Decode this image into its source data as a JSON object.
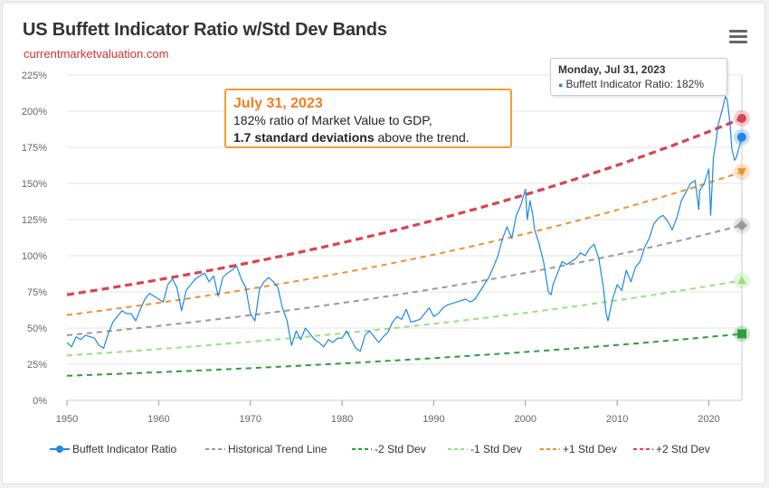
{
  "header": {
    "title": "US Buffett Indicator Ratio w/Std Dev Bands",
    "subtitle": "currentmarketvaluation.com",
    "menu_icon": "hamburger-menu-icon"
  },
  "callout": {
    "date": "July 31, 2023",
    "line1": "182% ratio of Market Value to GDP,",
    "line2_bold": "1.7 standard deviations",
    "line2_rest": " above the trend."
  },
  "tooltip": {
    "date": "Monday, Jul 31, 2023",
    "series": "Buffett Indicator Ratio",
    "value": "182%"
  },
  "colors": {
    "ratio": "#1e88e5",
    "trend": "#999999",
    "minus2": "#2e9d3e",
    "minus1": "#99e07a",
    "plus1": "#f0902a",
    "plus2": "#d9434e",
    "accent": "#f08020"
  },
  "chart_data": {
    "type": "line",
    "title": "US Buffett Indicator Ratio w/Std Dev Bands",
    "xlabel": "",
    "ylabel": "",
    "xlim": [
      1950,
      2023.6
    ],
    "ylim": [
      0,
      225
    ],
    "x_ticks": [
      "1950",
      "1960",
      "1970",
      "1980",
      "1990",
      "2000",
      "2010",
      "2020"
    ],
    "y_ticks": [
      "0%",
      "25%",
      "50%",
      "75%",
      "100%",
      "125%",
      "150%",
      "175%",
      "200%",
      "225%"
    ],
    "grid": "horizontal",
    "legend_position": "bottom",
    "series": [
      {
        "name": "Buffett Indicator Ratio",
        "style": "solid",
        "points": [
          [
            1950,
            40
          ],
          [
            1950.5,
            37
          ],
          [
            1951,
            44
          ],
          [
            1951.5,
            42
          ],
          [
            1952,
            45
          ],
          [
            1952.5,
            44
          ],
          [
            1953,
            43
          ],
          [
            1953.5,
            38
          ],
          [
            1954,
            36
          ],
          [
            1954.5,
            46
          ],
          [
            1955,
            54
          ],
          [
            1955.5,
            58
          ],
          [
            1956,
            62
          ],
          [
            1956.5,
            60
          ],
          [
            1957,
            60
          ],
          [
            1957.5,
            55
          ],
          [
            1958,
            63
          ],
          [
            1958.5,
            70
          ],
          [
            1959,
            74
          ],
          [
            1959.5,
            72
          ],
          [
            1960,
            70
          ],
          [
            1960.5,
            68
          ],
          [
            1961,
            80
          ],
          [
            1961.5,
            84
          ],
          [
            1962,
            78
          ],
          [
            1962.5,
            62
          ],
          [
            1963,
            76
          ],
          [
            1963.5,
            80
          ],
          [
            1964,
            84
          ],
          [
            1964.5,
            86
          ],
          [
            1965,
            88
          ],
          [
            1965.5,
            82
          ],
          [
            1966,
            86
          ],
          [
            1966.5,
            72
          ],
          [
            1967,
            85
          ],
          [
            1967.5,
            88
          ],
          [
            1968,
            90
          ],
          [
            1968.5,
            93
          ],
          [
            1969,
            84
          ],
          [
            1969.5,
            78
          ],
          [
            1970,
            60
          ],
          [
            1970.5,
            55
          ],
          [
            1971,
            77
          ],
          [
            1971.5,
            82
          ],
          [
            1972,
            85
          ],
          [
            1972.5,
            82
          ],
          [
            1973,
            78
          ],
          [
            1973.5,
            64
          ],
          [
            1974,
            55
          ],
          [
            1974.5,
            38
          ],
          [
            1975,
            48
          ],
          [
            1975.5,
            42
          ],
          [
            1976,
            50
          ],
          [
            1976.5,
            46
          ],
          [
            1977,
            42
          ],
          [
            1977.5,
            40
          ],
          [
            1978,
            37
          ],
          [
            1978.5,
            42
          ],
          [
            1979,
            40
          ],
          [
            1979.5,
            43
          ],
          [
            1980,
            43
          ],
          [
            1980.5,
            48
          ],
          [
            1981,
            42
          ],
          [
            1981.5,
            36
          ],
          [
            1982,
            34
          ],
          [
            1982.5,
            45
          ],
          [
            1983,
            48
          ],
          [
            1983.5,
            44
          ],
          [
            1984,
            40
          ],
          [
            1984.5,
            44
          ],
          [
            1985,
            47
          ],
          [
            1985.5,
            54
          ],
          [
            1986,
            58
          ],
          [
            1986.5,
            56
          ],
          [
            1987,
            63
          ],
          [
            1987.5,
            54
          ],
          [
            1988,
            55
          ],
          [
            1988.5,
            56
          ],
          [
            1989,
            60
          ],
          [
            1989.5,
            64
          ],
          [
            1990,
            58
          ],
          [
            1990.5,
            60
          ],
          [
            1991,
            64
          ],
          [
            1991.5,
            66
          ],
          [
            1992,
            67
          ],
          [
            1992.5,
            68
          ],
          [
            1993,
            69
          ],
          [
            1993.5,
            70
          ],
          [
            1994,
            68
          ],
          [
            1994.5,
            70
          ],
          [
            1995,
            75
          ],
          [
            1995.5,
            80
          ],
          [
            1996,
            85
          ],
          [
            1996.5,
            92
          ],
          [
            1997,
            100
          ],
          [
            1997.5,
            112
          ],
          [
            1998,
            120
          ],
          [
            1998.5,
            112
          ],
          [
            1999,
            128
          ],
          [
            1999.5,
            135
          ],
          [
            2000,
            146
          ],
          [
            2000.2,
            125
          ],
          [
            2000.5,
            138
          ],
          [
            2000.8,
            128
          ],
          [
            2001,
            118
          ],
          [
            2001.5,
            108
          ],
          [
            2002,
            95
          ],
          [
            2002.5,
            75
          ],
          [
            2002.8,
            73
          ],
          [
            2003,
            80
          ],
          [
            2003.5,
            88
          ],
          [
            2004,
            96
          ],
          [
            2004.5,
            94
          ],
          [
            2005,
            96
          ],
          [
            2005.5,
            98
          ],
          [
            2006,
            102
          ],
          [
            2006.5,
            100
          ],
          [
            2007,
            105
          ],
          [
            2007.5,
            108
          ],
          [
            2008,
            98
          ],
          [
            2008.5,
            78
          ],
          [
            2008.8,
            60
          ],
          [
            2009,
            55
          ],
          [
            2009.5,
            70
          ],
          [
            2010,
            80
          ],
          [
            2010.5,
            76
          ],
          [
            2011,
            90
          ],
          [
            2011.5,
            82
          ],
          [
            2012,
            92
          ],
          [
            2012.5,
            96
          ],
          [
            2013,
            106
          ],
          [
            2013.5,
            112
          ],
          [
            2014,
            122
          ],
          [
            2014.5,
            126
          ],
          [
            2015,
            128
          ],
          [
            2015.5,
            124
          ],
          [
            2016,
            118
          ],
          [
            2016.5,
            126
          ],
          [
            2017,
            138
          ],
          [
            2017.5,
            144
          ],
          [
            2018,
            150
          ],
          [
            2018.5,
            152
          ],
          [
            2018.9,
            132
          ],
          [
            2019,
            145
          ],
          [
            2019.5,
            150
          ],
          [
            2020,
            160
          ],
          [
            2020.2,
            128
          ],
          [
            2020.5,
            168
          ],
          [
            2020.8,
            180
          ],
          [
            2021,
            190
          ],
          [
            2021.5,
            202
          ],
          [
            2021.8,
            210
          ],
          [
            2022,
            208
          ],
          [
            2022.3,
            192
          ],
          [
            2022.5,
            174
          ],
          [
            2022.8,
            166
          ],
          [
            2023,
            168
          ],
          [
            2023.3,
            175
          ],
          [
            2023.58,
            182
          ]
        ]
      },
      {
        "name": "Historical Trend Line",
        "style": "dashed",
        "start": [
          1950,
          45
        ],
        "end": [
          2023.6,
          121
        ]
      },
      {
        "name": "-2 Std Dev",
        "style": "dashed",
        "start": [
          1950,
          17
        ],
        "end": [
          2023.6,
          46
        ]
      },
      {
        "name": "-1 Std Dev",
        "style": "dashed",
        "start": [
          1950,
          31
        ],
        "end": [
          2023.6,
          83
        ]
      },
      {
        "name": "+1 Std Dev",
        "style": "dashed",
        "start": [
          1950,
          59
        ],
        "end": [
          2023.6,
          158
        ]
      },
      {
        "name": "+2 Std Dev",
        "style": "dashed",
        "start": [
          1950,
          73
        ],
        "end": [
          2023.6,
          195
        ]
      }
    ]
  }
}
